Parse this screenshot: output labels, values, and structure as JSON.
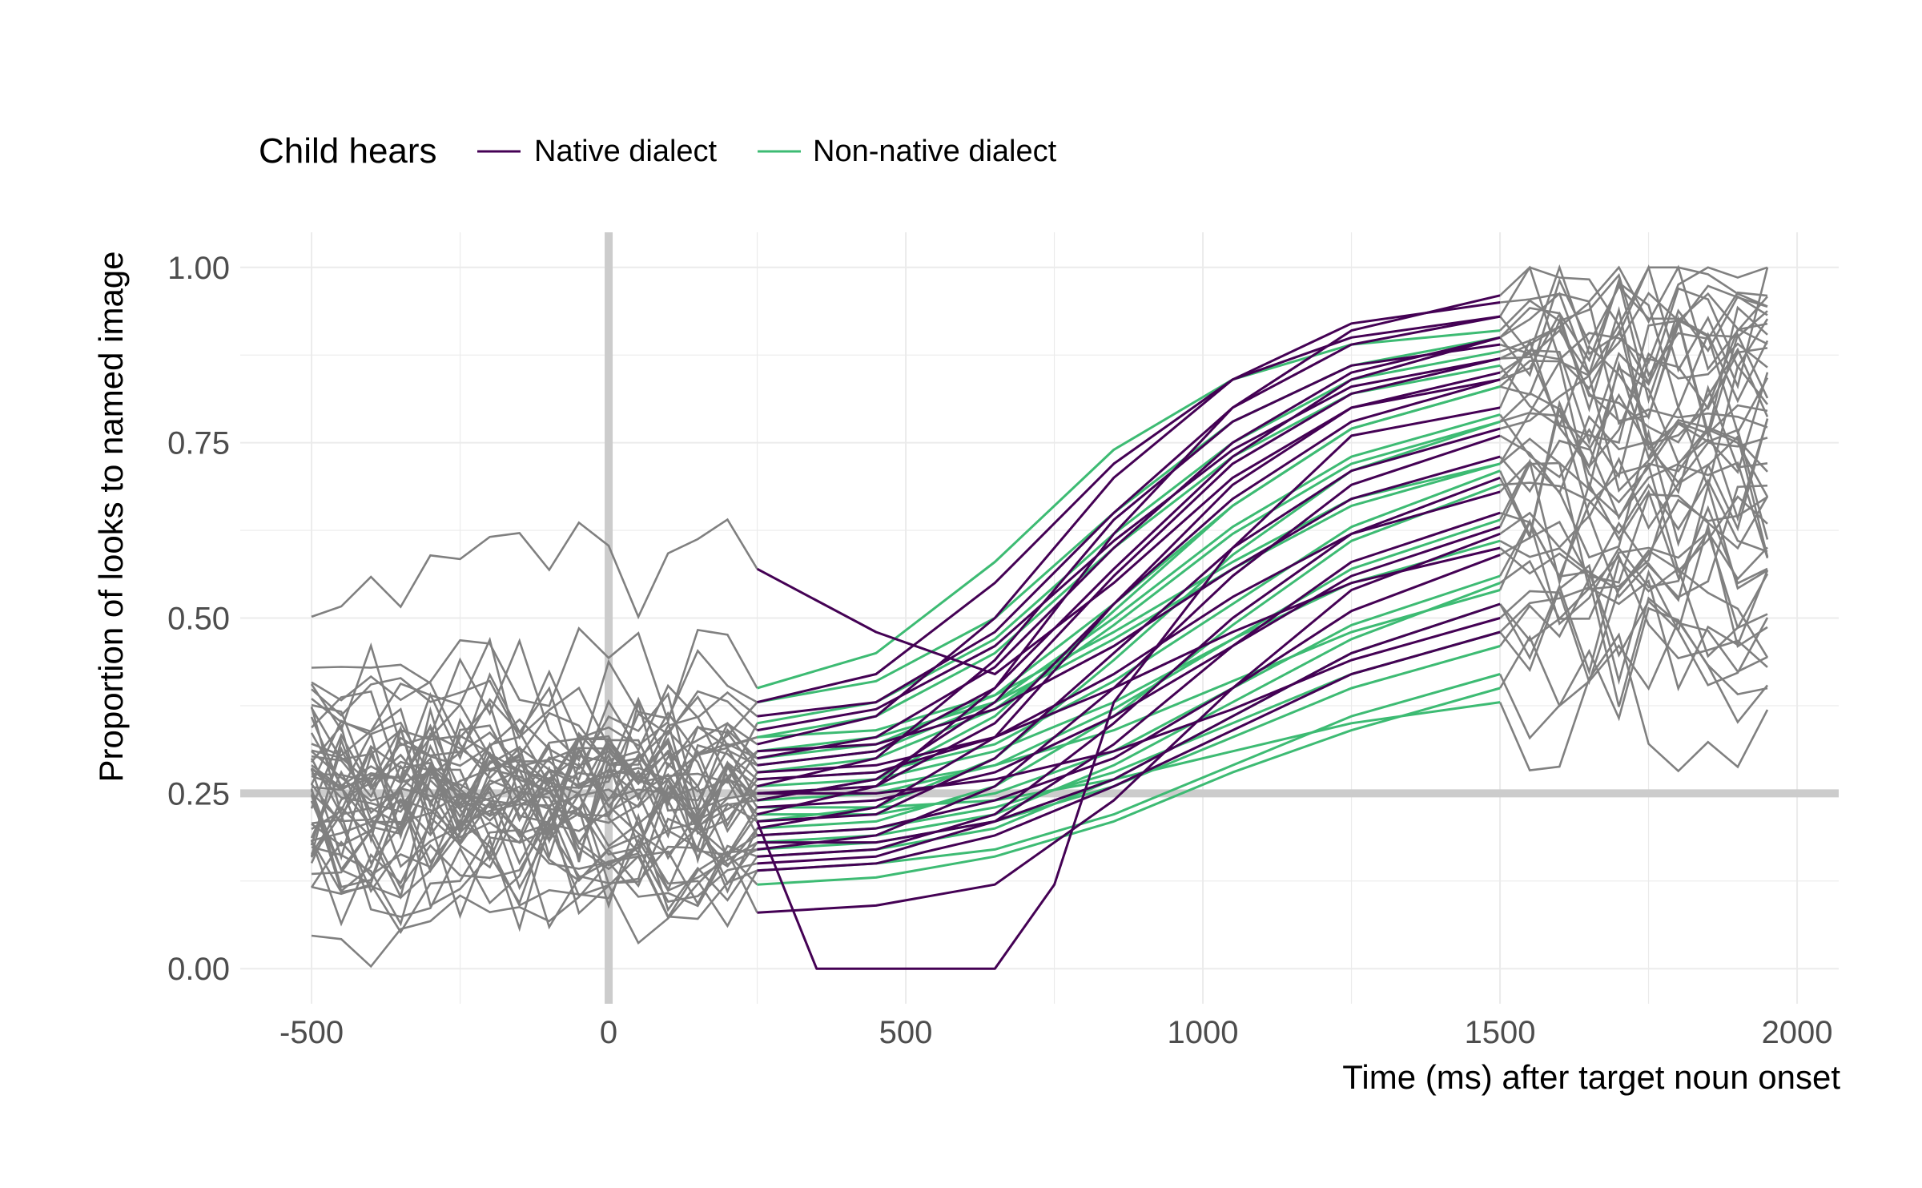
{
  "chart_data": {
    "type": "line",
    "xlabel": "Time (ms) after target noun onset",
    "ylabel": "Proportion of looks to named image",
    "xlim": [
      -620,
      2070
    ],
    "ylim": [
      -0.05,
      1.05
    ],
    "x_ticks": [
      -500,
      0,
      500,
      1000,
      1500,
      2000
    ],
    "x_tick_labels": [
      "-500",
      "0",
      "500",
      "1000",
      "1500",
      "2000"
    ],
    "y_ticks": [
      0,
      0.25,
      0.5,
      0.75,
      1
    ],
    "y_tick_labels": [
      "0.00",
      "0.25",
      "0.50",
      "0.75",
      "1.00"
    ],
    "grid": true,
    "reference_lines": {
      "x": 0,
      "y": 0.25,
      "color": "#cccccc"
    },
    "time_windows": {
      "pre_window": [
        -500,
        250
      ],
      "analysis_window": [
        250,
        1500
      ],
      "post_window": [
        1500,
        1950
      ]
    },
    "legend": {
      "title": "Child hears",
      "position": "top-left",
      "entries": [
        {
          "name": "Native dialect",
          "color": "#440154"
        },
        {
          "name": "Non-native dialect",
          "color": "#3dbb73"
        }
      ]
    },
    "context_color": "#808080",
    "series": [
      {
        "id": 1,
        "group": "Native dialect",
        "x": [
          250,
          450,
          650,
          850,
          1050,
          1250,
          1500
        ],
        "y": [
          0.25,
          0.26,
          0.35,
          0.52,
          0.67,
          0.78,
          0.84
        ]
      },
      {
        "id": 2,
        "group": "Native dialect",
        "x": [
          250,
          450,
          650,
          850,
          1050,
          1250,
          1500
        ],
        "y": [
          0.21,
          0.22,
          0.3,
          0.45,
          0.6,
          0.71,
          0.77
        ]
      },
      {
        "id": 3,
        "group": "Native dialect",
        "x": [
          250,
          450,
          650,
          850,
          1050,
          1250,
          1500
        ],
        "y": [
          0.3,
          0.33,
          0.43,
          0.6,
          0.75,
          0.85,
          0.9
        ]
      },
      {
        "id": 4,
        "group": "Native dialect",
        "x": [
          250,
          450,
          650,
          850,
          1050,
          1250,
          1500
        ],
        "y": [
          0.16,
          0.17,
          0.22,
          0.35,
          0.5,
          0.62,
          0.7
        ]
      },
      {
        "id": 5,
        "group": "Native dialect",
        "x": [
          250,
          450,
          650,
          850,
          1050,
          1250,
          1500
        ],
        "y": [
          0.36,
          0.38,
          0.48,
          0.65,
          0.8,
          0.89,
          0.93
        ]
      },
      {
        "id": 6,
        "group": "Native dialect",
        "x": [
          250,
          450,
          650,
          850,
          1050,
          1250,
          1500
        ],
        "y": [
          0.27,
          0.28,
          0.33,
          0.42,
          0.53,
          0.62,
          0.68
        ]
      },
      {
        "id": 7,
        "group": "Native dialect",
        "x": [
          250,
          450,
          650,
          850,
          1050,
          1250,
          1500
        ],
        "y": [
          0.19,
          0.2,
          0.24,
          0.3,
          0.4,
          0.51,
          0.59
        ]
      },
      {
        "id": 8,
        "group": "Native dialect",
        "x": [
          250,
          450,
          650,
          850,
          1050,
          1250,
          1500
        ],
        "y": [
          0.32,
          0.36,
          0.5,
          0.7,
          0.84,
          0.92,
          0.95
        ]
      },
      {
        "id": 9,
        "group": "Native dialect",
        "x": [
          250,
          450,
          650,
          850,
          1050,
          1250,
          1500
        ],
        "y": [
          0.24,
          0.27,
          0.38,
          0.56,
          0.72,
          0.82,
          0.87
        ]
      },
      {
        "id": 10,
        "group": "Native dialect",
        "x": [
          250,
          450,
          650,
          850,
          1050,
          1250,
          1500
        ],
        "y": [
          0.14,
          0.15,
          0.19,
          0.26,
          0.34,
          0.42,
          0.48
        ]
      },
      {
        "id": 11,
        "group": "Native dialect",
        "x": [
          250,
          450,
          650,
          850,
          1050,
          1250,
          1500
        ],
        "y": [
          0.38,
          0.42,
          0.55,
          0.72,
          0.84,
          0.9,
          0.93
        ]
      },
      {
        "id": 12,
        "group": "Native dialect",
        "x": [
          250,
          350,
          450,
          550,
          650,
          750,
          850,
          1050,
          1250,
          1500
        ],
        "y": [
          0.21,
          0.0,
          0.0,
          0.0,
          0.0,
          0.12,
          0.38,
          0.6,
          0.76,
          0.8
        ]
      },
      {
        "id": 13,
        "group": "Native dialect",
        "x": [
          250,
          450,
          650,
          850,
          1050,
          1250,
          1500
        ],
        "y": [
          0.26,
          0.3,
          0.44,
          0.64,
          0.78,
          0.86,
          0.89
        ]
      },
      {
        "id": 14,
        "group": "Native dialect",
        "x": [
          250,
          450,
          650,
          850,
          1050,
          1250,
          1500
        ],
        "y": [
          0.18,
          0.18,
          0.21,
          0.27,
          0.36,
          0.45,
          0.52
        ]
      },
      {
        "id": 15,
        "group": "Native dialect",
        "x": [
          250,
          450,
          650,
          850,
          1050,
          1250,
          1500
        ],
        "y": [
          0.29,
          0.31,
          0.4,
          0.57,
          0.73,
          0.84,
          0.9
        ]
      },
      {
        "id": 16,
        "group": "Native dialect",
        "x": [
          250,
          450,
          650,
          850,
          1050,
          1250,
          1500
        ],
        "y": [
          0.23,
          0.24,
          0.28,
          0.36,
          0.46,
          0.56,
          0.63
        ]
      },
      {
        "id": 17,
        "group": "Native dialect",
        "x": [
          250,
          450,
          650,
          850,
          1050,
          1250,
          1500
        ],
        "y": [
          0.34,
          0.37,
          0.46,
          0.61,
          0.74,
          0.83,
          0.87
        ]
      },
      {
        "id": 18,
        "group": "Native dialect",
        "x": [
          250,
          450,
          650,
          850,
          1050,
          1250,
          1500
        ],
        "y": [
          0.2,
          0.23,
          0.33,
          0.52,
          0.69,
          0.8,
          0.85
        ]
      },
      {
        "id": 19,
        "group": "Native dialect",
        "x": [
          250,
          450,
          650,
          850,
          1050,
          1250,
          1500
        ],
        "y": [
          0.28,
          0.29,
          0.33,
          0.4,
          0.48,
          0.55,
          0.6
        ]
      },
      {
        "id": 20,
        "group": "Native dialect",
        "x": [
          250,
          450,
          650,
          850,
          1050,
          1250,
          1500
        ],
        "y": [
          0.22,
          0.26,
          0.4,
          0.62,
          0.8,
          0.91,
          0.96
        ]
      },
      {
        "id": 21,
        "group": "Native dialect",
        "x": [
          250,
          450,
          650,
          850,
          1050,
          1250,
          1500
        ],
        "y": [
          0.31,
          0.32,
          0.37,
          0.46,
          0.57,
          0.67,
          0.73
        ]
      },
      {
        "id": 22,
        "group": "Native dialect",
        "x": [
          250,
          450,
          650,
          850,
          1050,
          1250,
          1500
        ],
        "y": [
          0.17,
          0.19,
          0.26,
          0.4,
          0.56,
          0.69,
          0.76
        ]
      },
      {
        "id": 23,
        "group": "Native dialect",
        "x": [
          250,
          450,
          650,
          850,
          1050,
          1250,
          1500
        ],
        "y": [
          0.57,
          0.48,
          0.42,
          0.55,
          0.7,
          0.8,
          0.84
        ]
      },
      {
        "id": 24,
        "group": "Native dialect",
        "x": [
          250,
          450,
          650,
          850,
          1050,
          1250,
          1500
        ],
        "y": [
          0.25,
          0.25,
          0.27,
          0.31,
          0.37,
          0.44,
          0.5
        ]
      },
      {
        "id": 25,
        "group": "Native dialect",
        "x": [
          250,
          450,
          650,
          850,
          1050,
          1250,
          1500
        ],
        "y": [
          0.15,
          0.16,
          0.21,
          0.32,
          0.46,
          0.58,
          0.65
        ]
      },
      {
        "id": 26,
        "group": "Native dialect",
        "x": [
          250,
          450,
          650,
          850,
          1050,
          1250,
          1500
        ],
        "y": [
          0.08,
          0.09,
          0.12,
          0.24,
          0.4,
          0.54,
          0.62
        ]
      },
      {
        "id": 27,
        "group": "Non-native dialect",
        "x": [
          250,
          450,
          650,
          850,
          1050,
          1250,
          1500
        ],
        "y": [
          0.27,
          0.28,
          0.32,
          0.41,
          0.52,
          0.63,
          0.71
        ]
      },
      {
        "id": 28,
        "group": "Non-native dialect",
        "x": [
          250,
          450,
          650,
          850,
          1050,
          1250,
          1500
        ],
        "y": [
          0.22,
          0.22,
          0.25,
          0.31,
          0.4,
          0.49,
          0.56
        ]
      },
      {
        "id": 29,
        "group": "Non-native dialect",
        "x": [
          250,
          450,
          650,
          850,
          1050,
          1250,
          1500
        ],
        "y": [
          0.33,
          0.36,
          0.45,
          0.6,
          0.73,
          0.82,
          0.86
        ]
      },
      {
        "id": 30,
        "group": "Non-native dialect",
        "x": [
          250,
          450,
          650,
          850,
          1050,
          1250,
          1500
        ],
        "y": [
          0.18,
          0.19,
          0.22,
          0.29,
          0.38,
          0.47,
          0.55
        ]
      },
      {
        "id": 31,
        "group": "Non-native dialect",
        "x": [
          250,
          450,
          650,
          850,
          1050,
          1250,
          1500
        ],
        "y": [
          0.4,
          0.45,
          0.58,
          0.74,
          0.84,
          0.89,
          0.91
        ]
      },
      {
        "id": 32,
        "group": "Non-native dialect",
        "x": [
          250,
          450,
          650,
          850,
          1050,
          1250,
          1500
        ],
        "y": [
          0.24,
          0.25,
          0.29,
          0.37,
          0.47,
          0.57,
          0.64
        ]
      },
      {
        "id": 33,
        "group": "Non-native dialect",
        "x": [
          250,
          450,
          650,
          850,
          1050,
          1250,
          1500
        ],
        "y": [
          0.14,
          0.15,
          0.17,
          0.22,
          0.29,
          0.36,
          0.42
        ]
      },
      {
        "id": 34,
        "group": "Non-native dialect",
        "x": [
          250,
          450,
          650,
          850,
          1050,
          1250,
          1500
        ],
        "y": [
          0.3,
          0.32,
          0.39,
          0.52,
          0.66,
          0.77,
          0.83
        ]
      },
      {
        "id": 35,
        "group": "Non-native dialect",
        "x": [
          250,
          450,
          650,
          850,
          1050,
          1250,
          1500
        ],
        "y": [
          0.26,
          0.27,
          0.31,
          0.38,
          0.47,
          0.55,
          0.61
        ]
      },
      {
        "id": 36,
        "group": "Non-native dialect",
        "x": [
          250,
          450,
          650,
          850,
          1050,
          1250,
          1500
        ],
        "y": [
          0.2,
          0.21,
          0.26,
          0.36,
          0.49,
          0.61,
          0.69
        ]
      },
      {
        "id": 37,
        "group": "Non-native dialect",
        "x": [
          250,
          450,
          650,
          850,
          1050,
          1250,
          1500
        ],
        "y": [
          0.35,
          0.38,
          0.47,
          0.62,
          0.75,
          0.84,
          0.88
        ]
      },
      {
        "id": 38,
        "group": "Non-native dialect",
        "x": [
          250,
          450,
          650,
          850,
          1050,
          1250,
          1500
        ],
        "y": [
          0.23,
          0.23,
          0.24,
          0.27,
          0.31,
          0.35,
          0.38
        ]
      },
      {
        "id": 39,
        "group": "Non-native dialect",
        "x": [
          250,
          450,
          650,
          850,
          1050,
          1250,
          1500
        ],
        "y": [
          0.28,
          0.3,
          0.37,
          0.49,
          0.62,
          0.72,
          0.78
        ]
      },
      {
        "id": 40,
        "group": "Non-native dialect",
        "x": [
          250,
          450,
          650,
          850,
          1050,
          1250,
          1500
        ],
        "y": [
          0.16,
          0.17,
          0.2,
          0.27,
          0.36,
          0.45,
          0.52
        ]
      },
      {
        "id": 41,
        "group": "Non-native dialect",
        "x": [
          250,
          450,
          650,
          850,
          1050,
          1250,
          1500
        ],
        "y": [
          0.31,
          0.33,
          0.38,
          0.47,
          0.57,
          0.66,
          0.72
        ]
      },
      {
        "id": 42,
        "group": "Non-native dialect",
        "x": [
          250,
          450,
          650,
          850,
          1050,
          1250,
          1500
        ],
        "y": [
          0.21,
          0.23,
          0.3,
          0.44,
          0.59,
          0.71,
          0.78
        ]
      },
      {
        "id": 43,
        "group": "Non-native dialect",
        "x": [
          250,
          450,
          650,
          850,
          1050,
          1250,
          1500
        ],
        "y": [
          0.25,
          0.26,
          0.29,
          0.34,
          0.41,
          0.48,
          0.54
        ]
      },
      {
        "id": 44,
        "group": "Non-native dialect",
        "x": [
          250,
          450,
          650,
          850,
          1050,
          1250,
          1500
        ],
        "y": [
          0.38,
          0.41,
          0.5,
          0.65,
          0.78,
          0.86,
          0.9
        ]
      },
      {
        "id": 45,
        "group": "Non-native dialect",
        "x": [
          250,
          450,
          650,
          850,
          1050,
          1250,
          1500
        ],
        "y": [
          0.19,
          0.2,
          0.23,
          0.28,
          0.35,
          0.42,
          0.48
        ]
      },
      {
        "id": 46,
        "group": "Non-native dialect",
        "x": [
          250,
          450,
          650,
          850,
          1050,
          1250,
          1500
        ],
        "y": [
          0.29,
          0.31,
          0.38,
          0.5,
          0.63,
          0.73,
          0.79
        ]
      },
      {
        "id": 47,
        "group": "Non-native dialect",
        "x": [
          250,
          450,
          650,
          850,
          1050,
          1250,
          1500
        ],
        "y": [
          0.12,
          0.13,
          0.16,
          0.21,
          0.28,
          0.34,
          0.4
        ]
      },
      {
        "id": 48,
        "group": "Non-native dialect",
        "x": [
          250,
          450,
          650,
          850,
          1050,
          1250,
          1500
        ],
        "y": [
          0.33,
          0.34,
          0.39,
          0.48,
          0.58,
          0.67,
          0.72
        ]
      },
      {
        "id": 49,
        "group": "Non-native dialect",
        "x": [
          250,
          450,
          650,
          850,
          1050,
          1250,
          1500
        ],
        "y": [
          0.24,
          0.27,
          0.36,
          0.51,
          0.66,
          0.77,
          0.83
        ]
      },
      {
        "id": 50,
        "group": "Non-native dialect",
        "x": [
          250,
          450,
          650,
          850,
          1050,
          1250,
          1500
        ],
        "y": [
          0.17,
          0.18,
          0.21,
          0.26,
          0.33,
          0.4,
          0.46
        ]
      }
    ]
  }
}
